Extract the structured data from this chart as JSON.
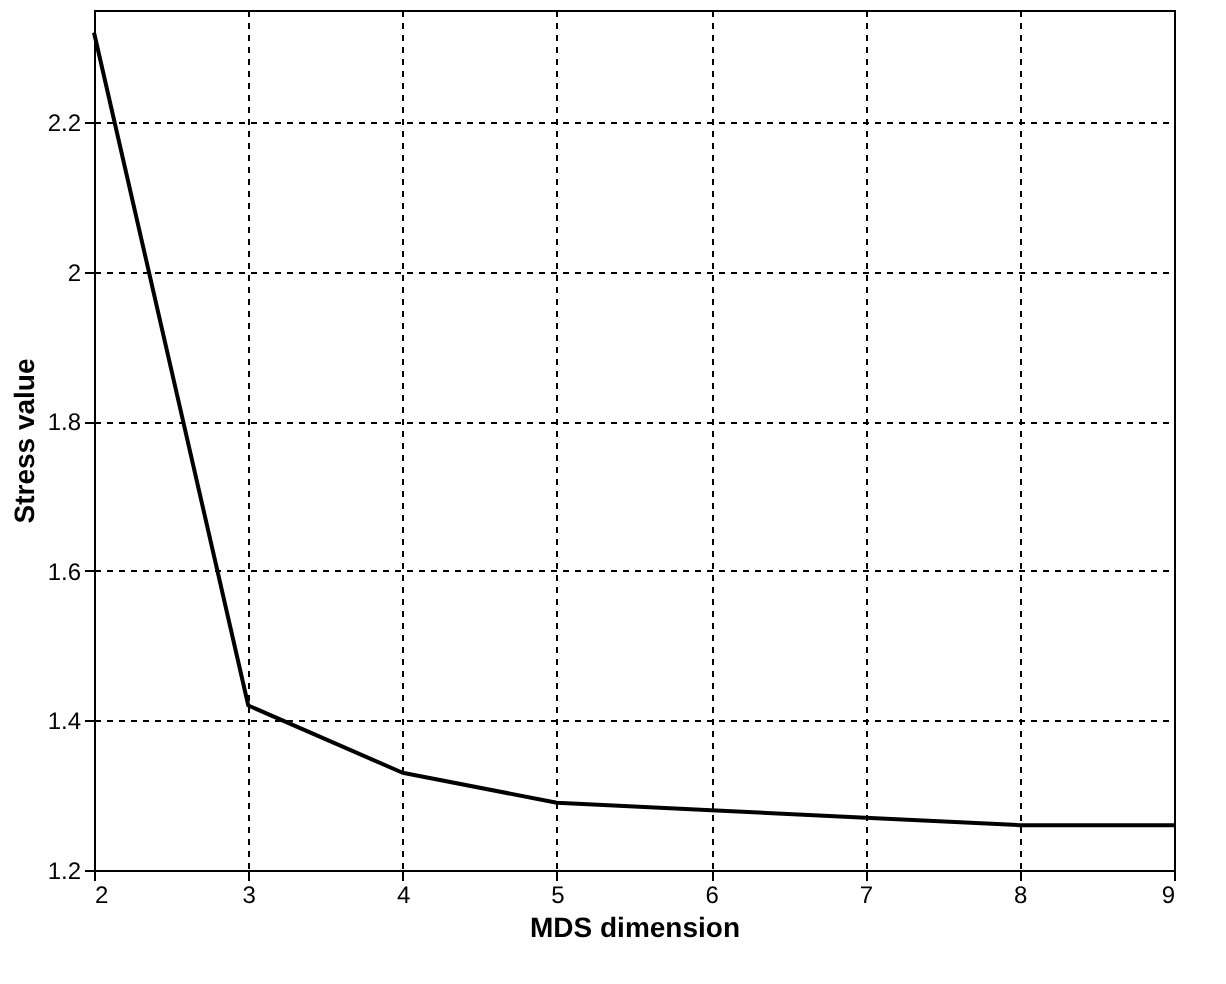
{
  "chart_data": {
    "type": "line",
    "xlabel": "MDS dimension",
    "ylabel": "Stress value",
    "x": [
      2,
      3,
      4,
      5,
      6,
      7,
      8,
      9
    ],
    "series": [
      {
        "color": "#000000",
        "values": [
          2.32,
          1.42,
          1.33,
          1.29,
          1.28,
          1.27,
          1.26,
          1.26
        ]
      }
    ],
    "xlim": [
      2,
      9
    ],
    "xticks": [
      2,
      3,
      4,
      5,
      6,
      7,
      8,
      9
    ],
    "ylim": [
      1.2,
      2.35
    ],
    "yticks": [
      1.2,
      1.4,
      1.6,
      1.8,
      2,
      2.2
    ],
    "grid": true,
    "marker": "none",
    "line_style": "solid"
  }
}
